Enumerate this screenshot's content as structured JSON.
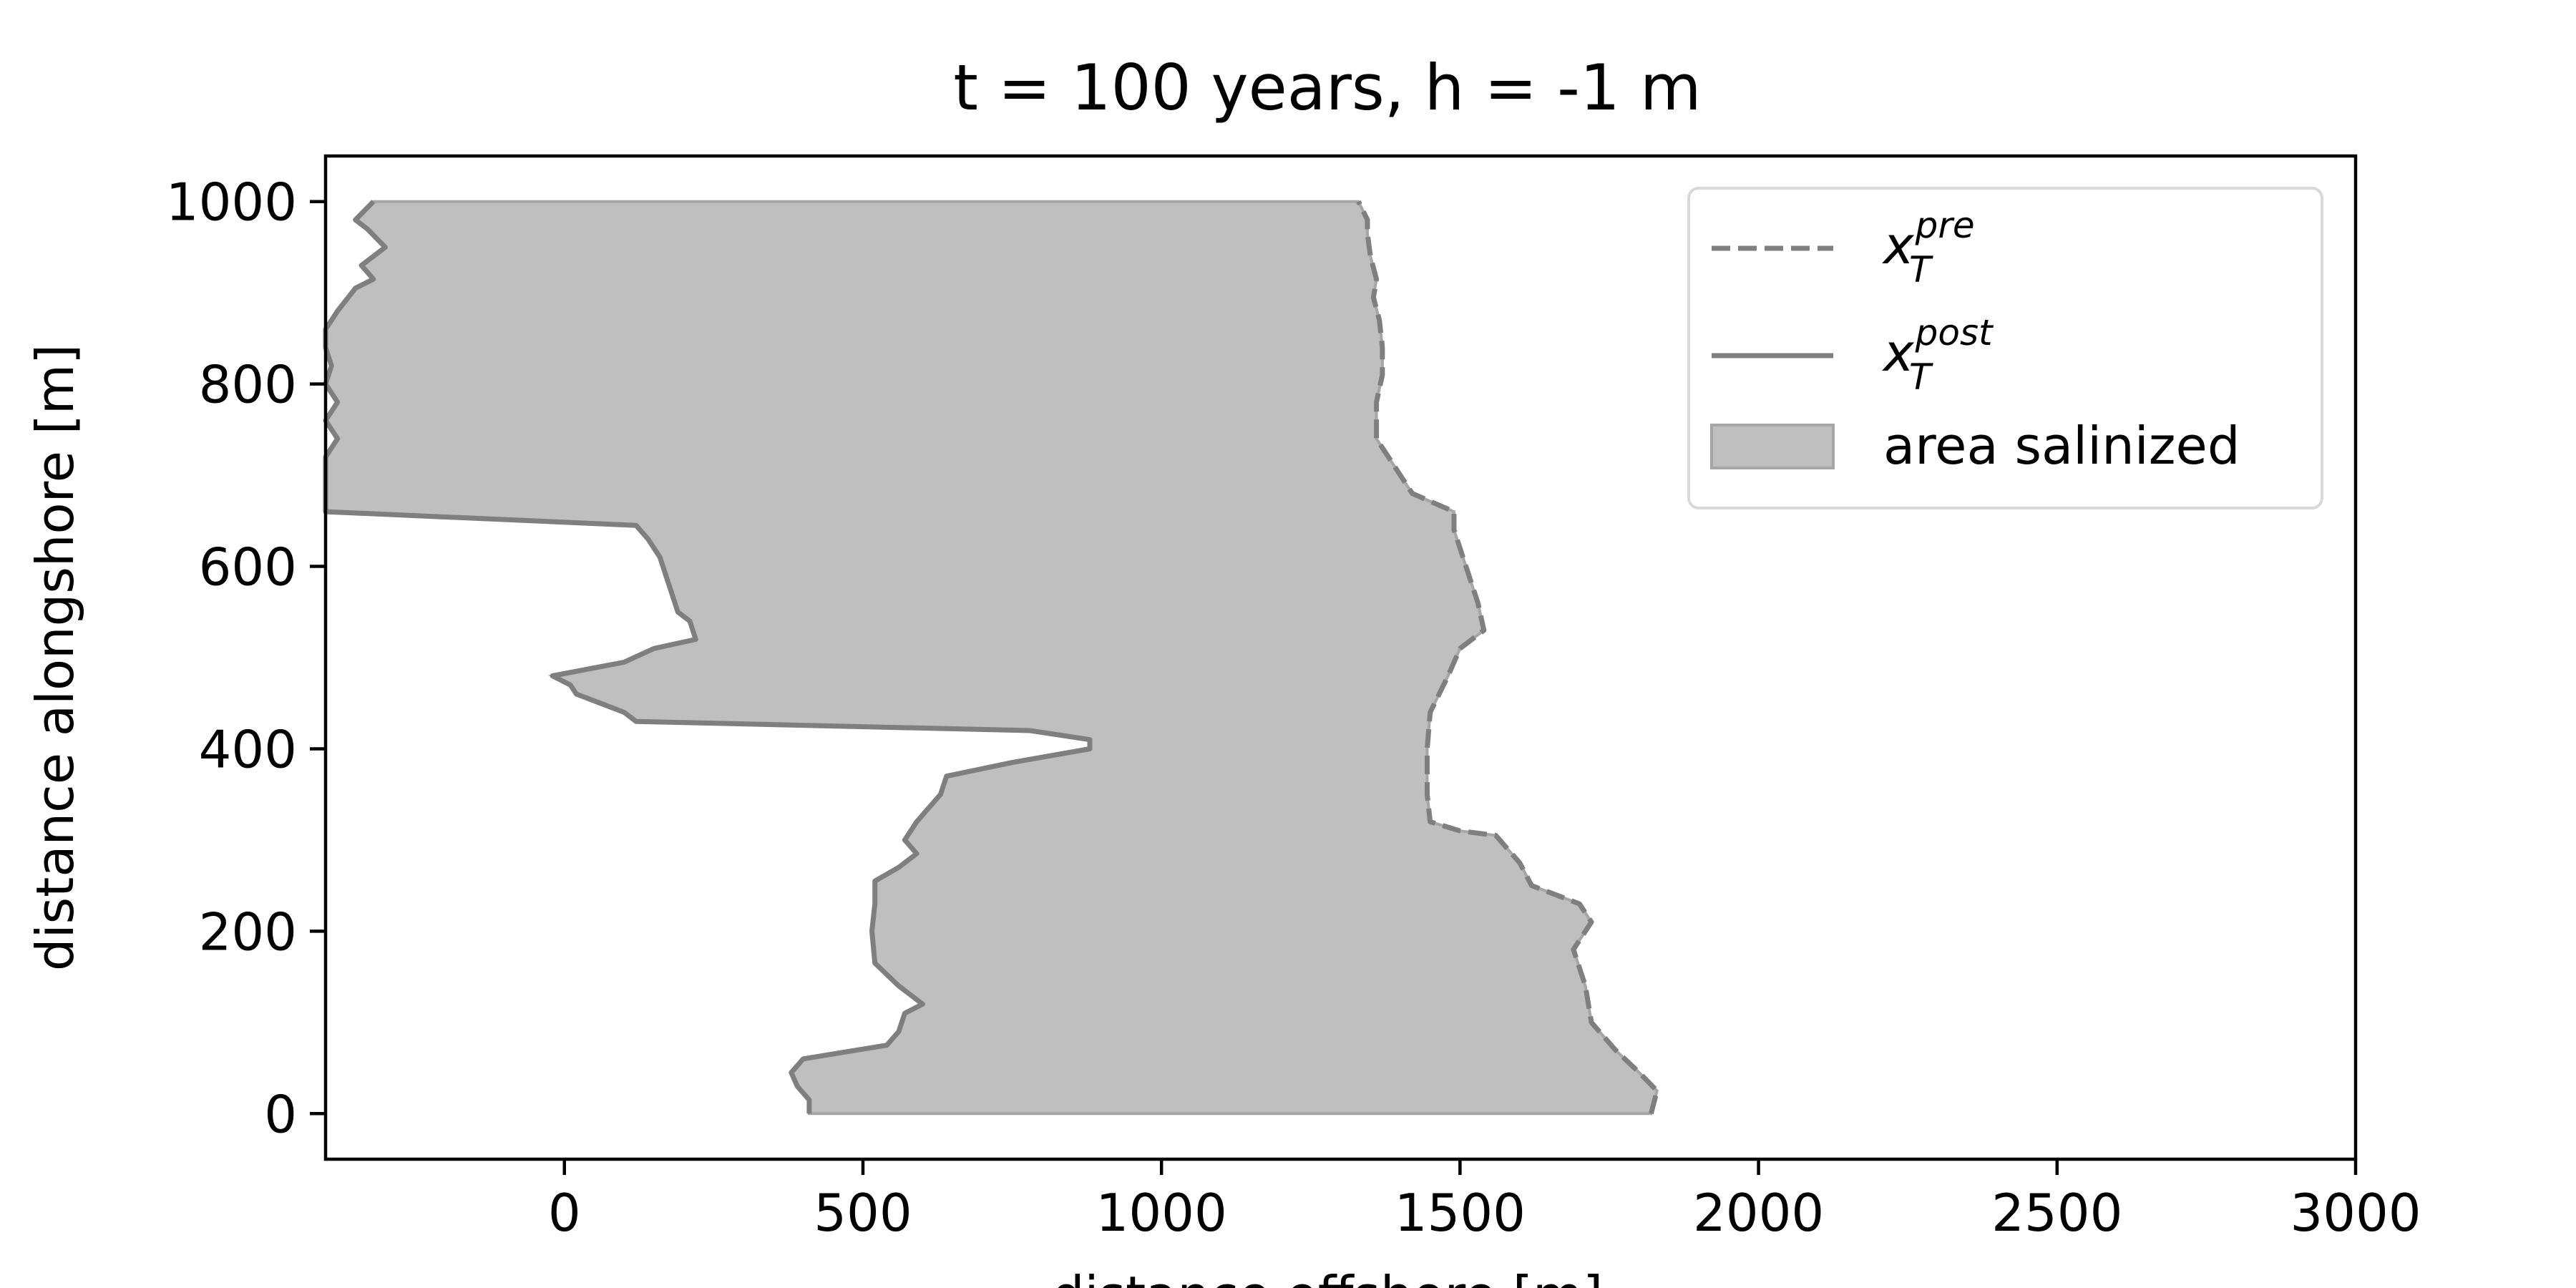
{
  "chart_data": {
    "type": "area",
    "title": "t = 100 years, h = -1 m",
    "xlabel": "distance offshore [m]",
    "ylabel": "distance alongshore [m]",
    "xlim": [
      -400,
      3000
    ],
    "ylim": [
      -50,
      1050
    ],
    "xticks": [
      0,
      500,
      1000,
      1500,
      2000,
      2500,
      3000
    ],
    "yticks": [
      0,
      200,
      400,
      600,
      800,
      1000
    ],
    "grid": false,
    "legend_position": "upper-right",
    "colors": {
      "line": "#7f7f7f",
      "fill": "#bfbfbf",
      "fill_edge": "#a6a6a6",
      "axes": "#000000",
      "legend_border": "#d9d9d9"
    },
    "legend": [
      {
        "type": "dashed-line",
        "base": "x",
        "sub": "T",
        "sup": "pre"
      },
      {
        "type": "solid-line",
        "base": "x",
        "sub": "T",
        "sup": "post"
      },
      {
        "type": "patch",
        "label": "area salinized"
      }
    ],
    "series": [
      {
        "key": "pre",
        "style": "dashed",
        "points": [
          [
            1820,
            0
          ],
          [
            1830,
            25
          ],
          [
            1800,
            45
          ],
          [
            1760,
            70
          ],
          [
            1720,
            100
          ],
          [
            1710,
            140
          ],
          [
            1690,
            180
          ],
          [
            1720,
            210
          ],
          [
            1700,
            230
          ],
          [
            1620,
            250
          ],
          [
            1600,
            275
          ],
          [
            1560,
            305
          ],
          [
            1500,
            310
          ],
          [
            1450,
            320
          ],
          [
            1445,
            350
          ],
          [
            1445,
            400
          ],
          [
            1450,
            440
          ],
          [
            1480,
            480
          ],
          [
            1500,
            510
          ],
          [
            1540,
            530
          ],
          [
            1530,
            560
          ],
          [
            1510,
            600
          ],
          [
            1500,
            620
          ],
          [
            1490,
            640
          ],
          [
            1490,
            660
          ],
          [
            1420,
            680
          ],
          [
            1380,
            720
          ],
          [
            1360,
            740
          ],
          [
            1360,
            780
          ],
          [
            1370,
            810
          ],
          [
            1370,
            840
          ],
          [
            1365,
            870
          ],
          [
            1355,
            895
          ],
          [
            1360,
            915
          ],
          [
            1350,
            940
          ],
          [
            1345,
            965
          ],
          [
            1345,
            980
          ],
          [
            1330,
            1000
          ]
        ]
      },
      {
        "key": "post",
        "style": "solid",
        "points": [
          [
            410,
            0
          ],
          [
            410,
            15
          ],
          [
            390,
            30
          ],
          [
            380,
            45
          ],
          [
            400,
            60
          ],
          [
            540,
            75
          ],
          [
            560,
            90
          ],
          [
            570,
            110
          ],
          [
            600,
            120
          ],
          [
            560,
            140
          ],
          [
            520,
            165
          ],
          [
            515,
            200
          ],
          [
            520,
            230
          ],
          [
            520,
            255
          ],
          [
            560,
            270
          ],
          [
            590,
            285
          ],
          [
            570,
            300
          ],
          [
            590,
            320
          ],
          [
            630,
            350
          ],
          [
            640,
            370
          ],
          [
            750,
            385
          ],
          [
            880,
            400
          ],
          [
            880,
            410
          ],
          [
            780,
            420
          ],
          [
            120,
            430
          ],
          [
            100,
            440
          ],
          [
            60,
            450
          ],
          [
            20,
            460
          ],
          [
            10,
            470
          ],
          [
            -20,
            480
          ],
          [
            100,
            495
          ],
          [
            150,
            510
          ],
          [
            220,
            520
          ],
          [
            210,
            540
          ],
          [
            190,
            550
          ],
          [
            180,
            570
          ],
          [
            170,
            590
          ],
          [
            160,
            610
          ],
          [
            140,
            630
          ],
          [
            120,
            645
          ],
          [
            -400,
            660
          ],
          [
            -400,
            700
          ],
          [
            -400,
            720
          ],
          [
            -380,
            740
          ],
          [
            -400,
            760
          ],
          [
            -380,
            780
          ],
          [
            -400,
            800
          ],
          [
            -390,
            820
          ],
          [
            -400,
            840
          ],
          [
            -400,
            860
          ],
          [
            -380,
            880
          ],
          [
            -350,
            905
          ],
          [
            -320,
            915
          ],
          [
            -340,
            930
          ],
          [
            -300,
            950
          ],
          [
            -330,
            970
          ],
          [
            -350,
            980
          ],
          [
            -320,
            1000
          ]
        ]
      }
    ]
  }
}
